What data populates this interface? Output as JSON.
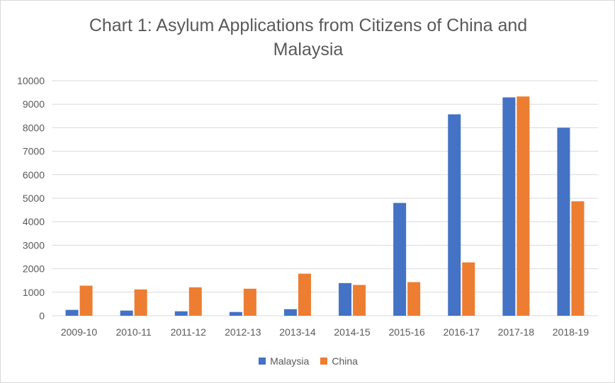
{
  "chart_data": {
    "type": "bar",
    "title_lines": [
      "Chart 1: Asylum Applications from Citizens of China and",
      "Malaysia"
    ],
    "categories": [
      "2009-10",
      "2010-11",
      "2011-12",
      "2012-13",
      "2013-14",
      "2014-15",
      "2015-16",
      "2016-17",
      "2017-18",
      "2018-19"
    ],
    "series": [
      {
        "name": "Malaysia",
        "color": "#4472c4",
        "values": [
          250,
          220,
          190,
          160,
          280,
          1390,
          4800,
          8570,
          9290,
          8000
        ]
      },
      {
        "name": "China",
        "color": "#ed7d31",
        "values": [
          1280,
          1120,
          1210,
          1150,
          1790,
          1310,
          1430,
          2270,
          9330,
          4870
        ]
      }
    ],
    "ylim": [
      0,
      10000
    ],
    "yticks": [
      0,
      1000,
      2000,
      3000,
      4000,
      5000,
      6000,
      7000,
      8000,
      9000,
      10000
    ],
    "grid": true,
    "legend_position": "bottom"
  }
}
